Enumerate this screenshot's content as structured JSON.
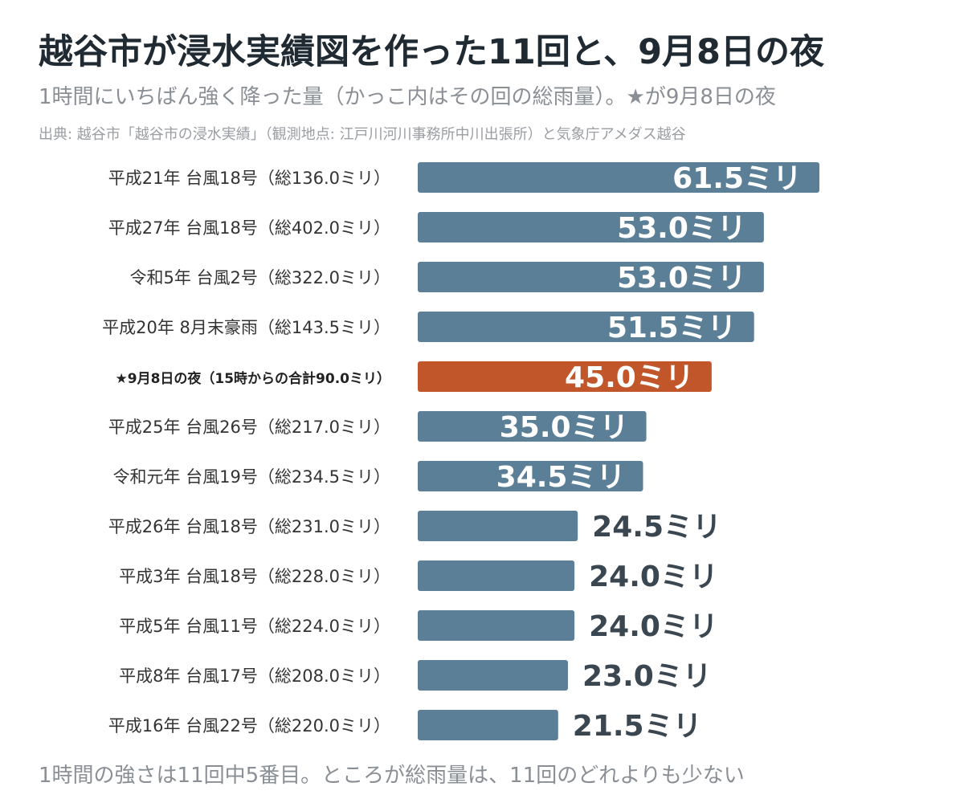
{
  "title": "越谷市が浸水実績図を作った11回と、9月8日の夜",
  "subtitle": "1時間にいちばん強く降った量（かっこ内はその回の総雨量）。★が9月8日の夜",
  "source": "出典: 越谷市「越谷市の浸水実績」（観測地点: 江戸川河川事務所中川出張所）と気象庁アメダス越谷",
  "footer": "1時間の強さは11回中5番目。ところが総雨量は、11回のどれよりも少ない",
  "colors": {
    "bar": "#5b7f96",
    "highlight": "#c0562a",
    "label_inside": "#ffffff",
    "label_outside": "#3a4650"
  },
  "chart_data": {
    "type": "bar",
    "orientation": "horizontal",
    "unit": "ミリ",
    "categories": [
      "平成21年 台風18号（総136.0ミリ）",
      "平成27年 台風18号（総402.0ミリ）",
      "令和5年 台風2号（総322.0ミリ）",
      "平成20年 8月末豪雨（総143.5ミリ）",
      "★9月8日の夜（15時からの合計90.0ミリ）",
      "平成25年 台風26号（総217.0ミリ）",
      "令和元年 台風19号（総234.5ミリ）",
      "平成26年 台風18号（総231.0ミリ）",
      "平成3年 台風18号（総228.0ミリ）",
      "平成5年 台風11号（総224.0ミリ）",
      "平成8年 台風17号（総208.0ミリ）",
      "平成16年 台風22号（総220.0ミリ）"
    ],
    "values": [
      61.5,
      53.0,
      53.0,
      51.5,
      45.0,
      35.0,
      34.5,
      24.5,
      24.0,
      24.0,
      23.0,
      21.5
    ],
    "value_labels": [
      "61.5ミリ",
      "53.0ミリ",
      "53.0ミリ",
      "51.5ミリ",
      "45.0ミリ",
      "35.0ミリ",
      "34.5ミリ",
      "24.5ミリ",
      "24.0ミリ",
      "24.0ミリ",
      "23.0ミリ",
      "21.5ミリ"
    ],
    "highlight_index": 4,
    "xlim": [
      0,
      61.5
    ],
    "grid": false,
    "legend": "none"
  }
}
